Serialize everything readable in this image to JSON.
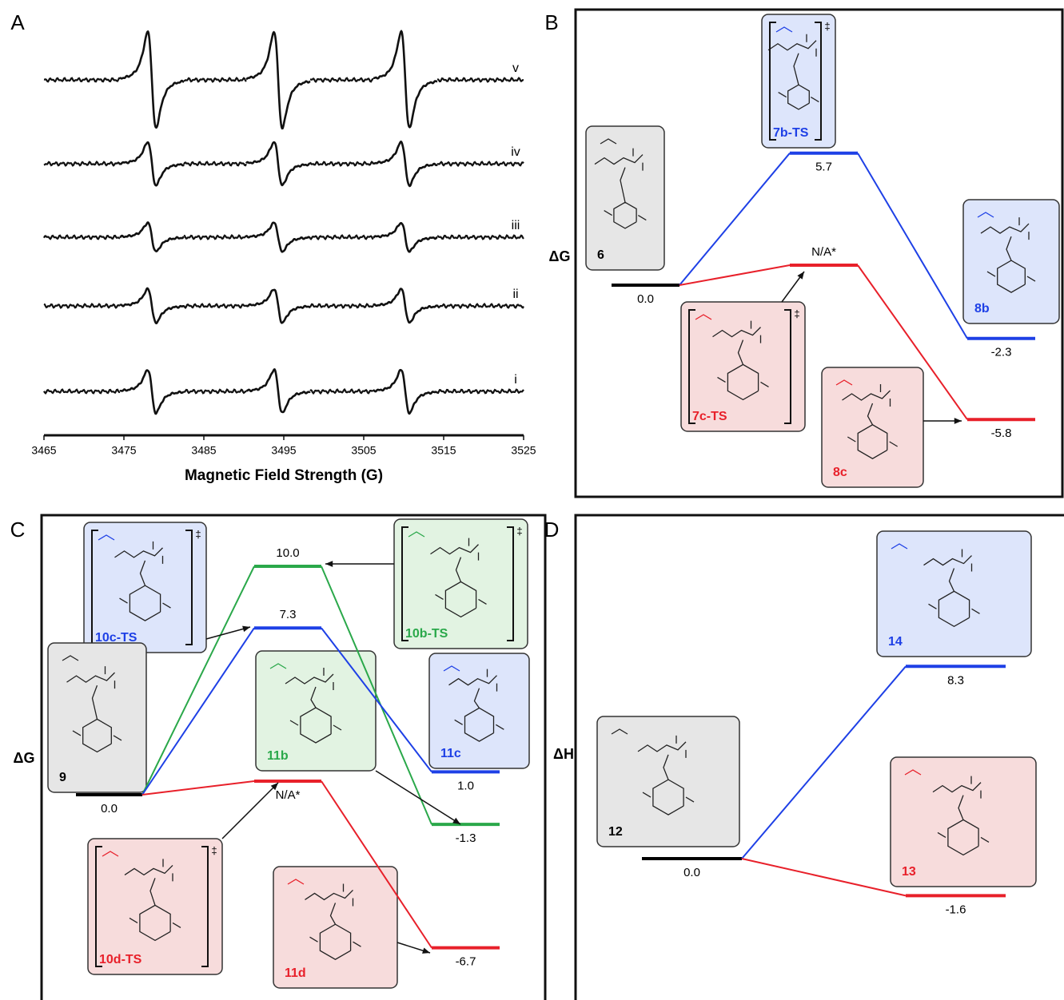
{
  "panels": [
    {
      "label": "A",
      "type": "spectra",
      "x_label": "Magnetic Field Strength (G)",
      "xlim": [
        3465,
        3525
      ],
      "xticks": [
        3465,
        3475,
        3485,
        3495,
        3505,
        3515,
        3525
      ],
      "line_positions": [
        3478.5,
        3494.3,
        3510.2
      ],
      "series": [
        {
          "name": "v",
          "values": [
            1,
            1,
            1
          ]
        },
        {
          "name": "iv",
          "values": [
            0.45,
            0.45,
            0.45
          ]
        },
        {
          "name": "iii",
          "values": [
            0.3,
            0.3,
            0.3
          ]
        },
        {
          "name": "ii",
          "values": [
            0.35,
            0.35,
            0.35
          ]
        },
        {
          "name": "i",
          "values": [
            0.45,
            0.45,
            0.45
          ]
        }
      ]
    },
    {
      "label": "B",
      "type": "energy",
      "y_label": "ΔG",
      "stages": [
        [
          {
            "value": 0,
            "label": "0.0",
            "color": "#000000"
          }
        ],
        [
          {
            "value": 5.7,
            "color": "#1e40e6"
          },
          {
            "value": null,
            "label": "N/A*",
            "color": "#e8202a"
          }
        ],
        [
          {
            "value": -2.3,
            "color": "#1e40e6"
          },
          {
            "value": -5.8,
            "color": "#e8202a"
          }
        ]
      ],
      "species": [
        {
          "label": "6",
          "color": "#000000"
        },
        {
          "label": "7b-TS",
          "color": "#1e40e6",
          "mark": "‡"
        },
        {
          "label": "8b",
          "color": "#1e40e6"
        },
        {
          "label": "7c-TS",
          "color": "#e8202a",
          "mark": "‡"
        },
        {
          "label": "8c",
          "color": "#e8202a"
        }
      ]
    },
    {
      "label": "C",
      "type": "energy",
      "y_label": "ΔG",
      "stages": [
        [
          {
            "value": 0,
            "label": "0.0",
            "color": "#000000"
          }
        ],
        [
          {
            "value": 10,
            "label": "10.0",
            "color": "#2aa84a"
          },
          {
            "value": 7.3,
            "color": "#1e40e6"
          },
          {
            "value": null,
            "label": "N/A*",
            "color": "#e8202a"
          }
        ],
        [
          {
            "value": 1,
            "label": "1.0",
            "color": "#1e40e6"
          },
          {
            "value": -1.3,
            "color": "#2aa84a"
          },
          {
            "value": -6.7,
            "color": "#e8202a"
          }
        ]
      ],
      "species": [
        {
          "label": "10c-TS",
          "color": "#1e40e6",
          "mark": "‡"
        },
        {
          "label": "10b-TS",
          "color": "#2aa84a",
          "mark": "‡"
        },
        {
          "label": "11b",
          "color": "#2aa84a"
        },
        {
          "label": "11c",
          "color": "#1e40e6"
        },
        {
          "label": "9",
          "color": "#000000"
        },
        {
          "label": "10d-TS",
          "color": "#e8202a",
          "mark": "‡"
        },
        {
          "label": "11d",
          "color": "#e8202a"
        }
      ]
    },
    {
      "label": "D",
      "type": "energy",
      "y_label": "ΔH",
      "stages": [
        [
          {
            "value": 0,
            "label": "0.0",
            "color": "#000000"
          }
        ],
        [
          {
            "value": 8.3,
            "color": "#1e40e6"
          },
          {
            "value": -1.6,
            "color": "#e8202a"
          }
        ]
      ],
      "species": [
        {
          "label": "12",
          "color": "#000000"
        },
        {
          "label": "14",
          "color": "#1e40e6"
        },
        {
          "label": "13",
          "color": "#e8202a"
        }
      ]
    }
  ]
}
